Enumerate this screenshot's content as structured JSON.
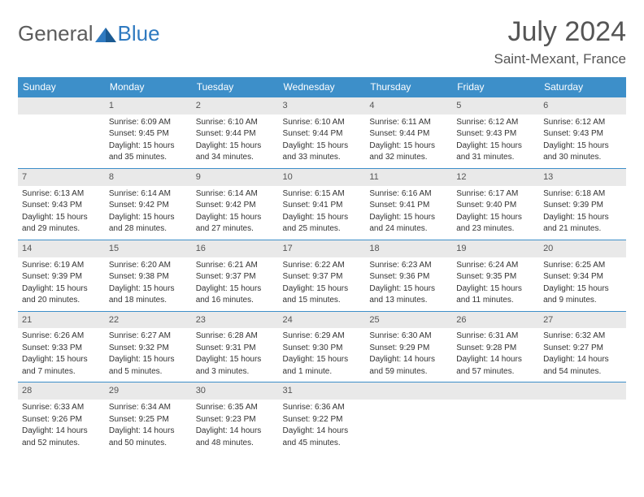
{
  "brand": {
    "general": "General",
    "blue": "Blue"
  },
  "title": "July 2024",
  "location": "Saint-Mexant, France",
  "header_bg": "#3d8fc9",
  "days": [
    "Sunday",
    "Monday",
    "Tuesday",
    "Wednesday",
    "Thursday",
    "Friday",
    "Saturday"
  ],
  "weeks": [
    [
      null,
      {
        "n": "1",
        "sr": "Sunrise: 6:09 AM",
        "ss": "Sunset: 9:45 PM",
        "dl1": "Daylight: 15 hours",
        "dl2": "and 35 minutes."
      },
      {
        "n": "2",
        "sr": "Sunrise: 6:10 AM",
        "ss": "Sunset: 9:44 PM",
        "dl1": "Daylight: 15 hours",
        "dl2": "and 34 minutes."
      },
      {
        "n": "3",
        "sr": "Sunrise: 6:10 AM",
        "ss": "Sunset: 9:44 PM",
        "dl1": "Daylight: 15 hours",
        "dl2": "and 33 minutes."
      },
      {
        "n": "4",
        "sr": "Sunrise: 6:11 AM",
        "ss": "Sunset: 9:44 PM",
        "dl1": "Daylight: 15 hours",
        "dl2": "and 32 minutes."
      },
      {
        "n": "5",
        "sr": "Sunrise: 6:12 AM",
        "ss": "Sunset: 9:43 PM",
        "dl1": "Daylight: 15 hours",
        "dl2": "and 31 minutes."
      },
      {
        "n": "6",
        "sr": "Sunrise: 6:12 AM",
        "ss": "Sunset: 9:43 PM",
        "dl1": "Daylight: 15 hours",
        "dl2": "and 30 minutes."
      }
    ],
    [
      {
        "n": "7",
        "sr": "Sunrise: 6:13 AM",
        "ss": "Sunset: 9:43 PM",
        "dl1": "Daylight: 15 hours",
        "dl2": "and 29 minutes."
      },
      {
        "n": "8",
        "sr": "Sunrise: 6:14 AM",
        "ss": "Sunset: 9:42 PM",
        "dl1": "Daylight: 15 hours",
        "dl2": "and 28 minutes."
      },
      {
        "n": "9",
        "sr": "Sunrise: 6:14 AM",
        "ss": "Sunset: 9:42 PM",
        "dl1": "Daylight: 15 hours",
        "dl2": "and 27 minutes."
      },
      {
        "n": "10",
        "sr": "Sunrise: 6:15 AM",
        "ss": "Sunset: 9:41 PM",
        "dl1": "Daylight: 15 hours",
        "dl2": "and 25 minutes."
      },
      {
        "n": "11",
        "sr": "Sunrise: 6:16 AM",
        "ss": "Sunset: 9:41 PM",
        "dl1": "Daylight: 15 hours",
        "dl2": "and 24 minutes."
      },
      {
        "n": "12",
        "sr": "Sunrise: 6:17 AM",
        "ss": "Sunset: 9:40 PM",
        "dl1": "Daylight: 15 hours",
        "dl2": "and 23 minutes."
      },
      {
        "n": "13",
        "sr": "Sunrise: 6:18 AM",
        "ss": "Sunset: 9:39 PM",
        "dl1": "Daylight: 15 hours",
        "dl2": "and 21 minutes."
      }
    ],
    [
      {
        "n": "14",
        "sr": "Sunrise: 6:19 AM",
        "ss": "Sunset: 9:39 PM",
        "dl1": "Daylight: 15 hours",
        "dl2": "and 20 minutes."
      },
      {
        "n": "15",
        "sr": "Sunrise: 6:20 AM",
        "ss": "Sunset: 9:38 PM",
        "dl1": "Daylight: 15 hours",
        "dl2": "and 18 minutes."
      },
      {
        "n": "16",
        "sr": "Sunrise: 6:21 AM",
        "ss": "Sunset: 9:37 PM",
        "dl1": "Daylight: 15 hours",
        "dl2": "and 16 minutes."
      },
      {
        "n": "17",
        "sr": "Sunrise: 6:22 AM",
        "ss": "Sunset: 9:37 PM",
        "dl1": "Daylight: 15 hours",
        "dl2": "and 15 minutes."
      },
      {
        "n": "18",
        "sr": "Sunrise: 6:23 AM",
        "ss": "Sunset: 9:36 PM",
        "dl1": "Daylight: 15 hours",
        "dl2": "and 13 minutes."
      },
      {
        "n": "19",
        "sr": "Sunrise: 6:24 AM",
        "ss": "Sunset: 9:35 PM",
        "dl1": "Daylight: 15 hours",
        "dl2": "and 11 minutes."
      },
      {
        "n": "20",
        "sr": "Sunrise: 6:25 AM",
        "ss": "Sunset: 9:34 PM",
        "dl1": "Daylight: 15 hours",
        "dl2": "and 9 minutes."
      }
    ],
    [
      {
        "n": "21",
        "sr": "Sunrise: 6:26 AM",
        "ss": "Sunset: 9:33 PM",
        "dl1": "Daylight: 15 hours",
        "dl2": "and 7 minutes."
      },
      {
        "n": "22",
        "sr": "Sunrise: 6:27 AM",
        "ss": "Sunset: 9:32 PM",
        "dl1": "Daylight: 15 hours",
        "dl2": "and 5 minutes."
      },
      {
        "n": "23",
        "sr": "Sunrise: 6:28 AM",
        "ss": "Sunset: 9:31 PM",
        "dl1": "Daylight: 15 hours",
        "dl2": "and 3 minutes."
      },
      {
        "n": "24",
        "sr": "Sunrise: 6:29 AM",
        "ss": "Sunset: 9:30 PM",
        "dl1": "Daylight: 15 hours",
        "dl2": "and 1 minute."
      },
      {
        "n": "25",
        "sr": "Sunrise: 6:30 AM",
        "ss": "Sunset: 9:29 PM",
        "dl1": "Daylight: 14 hours",
        "dl2": "and 59 minutes."
      },
      {
        "n": "26",
        "sr": "Sunrise: 6:31 AM",
        "ss": "Sunset: 9:28 PM",
        "dl1": "Daylight: 14 hours",
        "dl2": "and 57 minutes."
      },
      {
        "n": "27",
        "sr": "Sunrise: 6:32 AM",
        "ss": "Sunset: 9:27 PM",
        "dl1": "Daylight: 14 hours",
        "dl2": "and 54 minutes."
      }
    ],
    [
      {
        "n": "28",
        "sr": "Sunrise: 6:33 AM",
        "ss": "Sunset: 9:26 PM",
        "dl1": "Daylight: 14 hours",
        "dl2": "and 52 minutes."
      },
      {
        "n": "29",
        "sr": "Sunrise: 6:34 AM",
        "ss": "Sunset: 9:25 PM",
        "dl1": "Daylight: 14 hours",
        "dl2": "and 50 minutes."
      },
      {
        "n": "30",
        "sr": "Sunrise: 6:35 AM",
        "ss": "Sunset: 9:23 PM",
        "dl1": "Daylight: 14 hours",
        "dl2": "and 48 minutes."
      },
      {
        "n": "31",
        "sr": "Sunrise: 6:36 AM",
        "ss": "Sunset: 9:22 PM",
        "dl1": "Daylight: 14 hours",
        "dl2": "and 45 minutes."
      },
      null,
      null,
      null
    ]
  ]
}
